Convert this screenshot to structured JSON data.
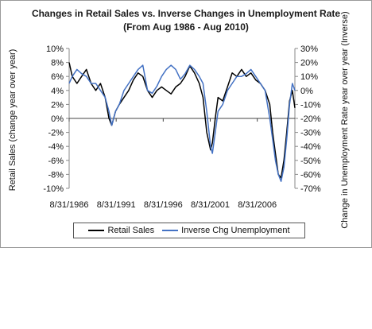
{
  "chart_data": {
    "type": "line",
    "title": "Changes in Retail Sales vs. Inverse Changes in Unemployment Rate",
    "subtitle": "(From Aug 1986 - Aug 2010)",
    "ylabel_left": "Retail Sales (change year over year)",
    "ylabel_right": "Change in Unemployment Rate year over year (Inverse)",
    "xlabel": "",
    "x_ticks": [
      "8/31/1986",
      "8/31/1991",
      "8/31/1996",
      "8/31/2001",
      "8/31/2006"
    ],
    "x_range": [
      1986.67,
      2010.67
    ],
    "y_left_ticks": [
      "10%",
      "8%",
      "6%",
      "4%",
      "2%",
      "0%",
      "-2%",
      "-4%",
      "-6%",
      "-8%",
      "-10%"
    ],
    "y_left_range": [
      -10,
      10
    ],
    "y_right_ticks": [
      "30%",
      "20%",
      "10%",
      "0%",
      "-10%",
      "-20%",
      "-30%",
      "-40%",
      "-50%",
      "-60%",
      "-70%"
    ],
    "y_right_range": [
      -70,
      30
    ],
    "grid": false,
    "legend_position": "bottom",
    "series": [
      {
        "name": "Retail Sales",
        "axis": "left",
        "color": "#000000",
        "x": [
          1986.67,
          1987.0,
          1987.5,
          1988.0,
          1988.5,
          1989.0,
          1989.5,
          1990.0,
          1990.5,
          1990.9,
          1991.2,
          1991.6,
          1992.0,
          1992.5,
          1993.0,
          1993.5,
          1994.0,
          1994.5,
          1995.0,
          1995.5,
          1996.0,
          1996.5,
          1997.0,
          1997.5,
          1998.0,
          1998.5,
          1999.0,
          1999.5,
          2000.0,
          2000.5,
          2000.9,
          2001.3,
          2001.7,
          2001.9,
          2002.2,
          2002.5,
          2003.0,
          2003.5,
          2004.0,
          2004.5,
          2005.0,
          2005.5,
          2006.0,
          2006.5,
          2007.0,
          2007.5,
          2008.0,
          2008.3,
          2008.6,
          2008.9,
          2009.2,
          2009.5,
          2009.8,
          2010.1,
          2010.4,
          2010.67
        ],
        "values": [
          8.0,
          6.0,
          5.0,
          6.0,
          7.0,
          5.0,
          4.0,
          5.0,
          3.0,
          0.0,
          -1.0,
          1.0,
          2.0,
          3.0,
          4.0,
          5.5,
          6.5,
          6.0,
          4.0,
          3.0,
          4.0,
          4.5,
          4.0,
          3.5,
          4.5,
          5.0,
          6.0,
          7.5,
          6.5,
          5.0,
          3.0,
          -2.0,
          -4.5,
          -3.5,
          0.0,
          3.0,
          2.5,
          4.5,
          6.5,
          6.0,
          7.0,
          6.0,
          6.5,
          5.5,
          5.0,
          4.0,
          2.0,
          -2.0,
          -5.0,
          -8.0,
          -8.5,
          -6.0,
          -2.0,
          2.5,
          4.0,
          1.5
        ]
      },
      {
        "name": "Inverse Chg Unemployment",
        "axis": "right",
        "color": "#4472c4",
        "x": [
          1986.67,
          1987.0,
          1987.5,
          1988.0,
          1988.5,
          1989.0,
          1989.5,
          1990.0,
          1990.5,
          1990.9,
          1991.2,
          1991.6,
          1992.0,
          1992.5,
          1993.0,
          1993.5,
          1994.0,
          1994.5,
          1995.0,
          1995.5,
          1996.0,
          1996.5,
          1997.0,
          1997.5,
          1998.0,
          1998.5,
          1999.0,
          1999.5,
          2000.0,
          2000.5,
          2000.9,
          2001.3,
          2001.7,
          2001.9,
          2002.2,
          2002.5,
          2003.0,
          2003.5,
          2004.0,
          2004.5,
          2005.0,
          2005.5,
          2006.0,
          2006.5,
          2007.0,
          2007.5,
          2008.0,
          2008.3,
          2008.6,
          2008.9,
          2009.2,
          2009.5,
          2009.8,
          2010.1,
          2010.4,
          2010.67
        ],
        "values": [
          5,
          10,
          15,
          12,
          10,
          5,
          5,
          0,
          -5,
          -15,
          -25,
          -15,
          -10,
          0,
          5,
          10,
          15,
          18,
          0,
          -2,
          3,
          10,
          15,
          18,
          15,
          8,
          12,
          18,
          15,
          10,
          5,
          -15,
          -40,
          -45,
          -30,
          -15,
          -10,
          0,
          5,
          10,
          10,
          12,
          15,
          10,
          5,
          0,
          -20,
          -35,
          -50,
          -60,
          -65,
          -55,
          -35,
          -10,
          5,
          0
        ]
      }
    ]
  }
}
